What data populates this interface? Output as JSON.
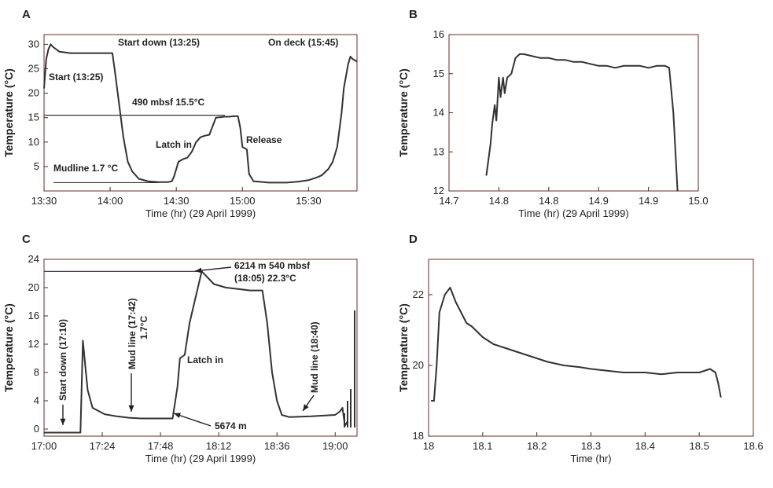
{
  "chart_data": [
    {
      "panel": "A",
      "type": "line",
      "xlabel": "Time (hr) (29 April 1999)",
      "ylabel": "Temperature (°C)",
      "x_ticks": [
        "13:30",
        "14:00",
        "14:30",
        "15:00",
        "15:30"
      ],
      "y_ticks": [
        5,
        10,
        15,
        20,
        25,
        30
      ],
      "xlim": [
        "13:30",
        "15:52"
      ],
      "ylim": [
        0,
        32
      ],
      "series": [
        {
          "x": [
            "13:30",
            "13:31",
            "13:32",
            "13:33",
            "13:34",
            "13:37",
            "13:42",
            "13:50",
            "13:58",
            "14:01",
            "14:02",
            "14:04",
            "14:06",
            "14:08",
            "14:10",
            "14:13",
            "14:17",
            "14:22",
            "14:26",
            "14:28",
            "14:29",
            "14:31",
            "14:33",
            "14:35",
            "14:37",
            "14:39",
            "14:41",
            "14:43",
            "14:45",
            "14:48",
            "14:52",
            "14:54",
            "14:56",
            "14:58",
            "14:59",
            "15:00",
            "15:02",
            "15:03",
            "15:05",
            "15:12",
            "15:20",
            "15:25",
            "15:30",
            "15:34",
            "15:36",
            "15:39",
            "15:41",
            "15:43",
            "15:45",
            "15:46",
            "15:48",
            "15:49",
            "15:50",
            "15:52"
          ],
          "values": [
            21,
            27,
            29,
            30,
            29.5,
            28.5,
            28.2,
            28.2,
            28.2,
            28.2,
            25,
            18,
            11,
            6,
            4,
            2.5,
            2,
            1.8,
            1.8,
            2,
            3,
            6,
            6.5,
            6.8,
            8,
            10,
            11,
            11.3,
            11.5,
            15,
            15.2,
            15.2,
            15.3,
            15.3,
            13,
            9,
            8.5,
            3.5,
            2,
            1.7,
            1.7,
            1.9,
            2.2,
            2.8,
            3.2,
            4.5,
            6,
            9,
            16,
            21,
            26,
            27.5,
            27,
            26.5
          ]
        }
      ],
      "annotations": [
        "Start down (13:25)",
        "On deck (15:45)",
        "Start (13:25)",
        "490 mbsf 15.5°C",
        "Latch in",
        "Release",
        "Mudline 1.7 °C"
      ]
    },
    {
      "panel": "B",
      "type": "line",
      "xlabel": "Time (hr) (29 April 1999)",
      "ylabel": "Temperature (°C)",
      "x_ticks": [
        "14.7",
        "14.8",
        "14.8",
        "14.9",
        "14.9",
        "15.0"
      ],
      "y_ticks": [
        12,
        13,
        14,
        15,
        16
      ],
      "xlim": [
        14.7,
        15.0
      ],
      "ylim": [
        12,
        16
      ],
      "series": [
        {
          "x": [
            14.745,
            14.75,
            14.752,
            14.755,
            14.757,
            14.76,
            14.762,
            14.765,
            14.767,
            14.77,
            14.775,
            14.78,
            14.785,
            14.79,
            14.8,
            14.81,
            14.82,
            14.83,
            14.84,
            14.85,
            14.86,
            14.87,
            14.88,
            14.89,
            14.9,
            14.91,
            14.92,
            14.93,
            14.94,
            14.95,
            14.96,
            14.965,
            14.97,
            14.975
          ],
          "values": [
            12.4,
            13.2,
            13.7,
            14.2,
            13.8,
            14.9,
            14.4,
            14.9,
            14.5,
            14.9,
            15.0,
            15.4,
            15.5,
            15.5,
            15.45,
            15.4,
            15.4,
            15.35,
            15.35,
            15.3,
            15.3,
            15.25,
            15.2,
            15.2,
            15.15,
            15.2,
            15.2,
            15.2,
            15.15,
            15.2,
            15.2,
            15.15,
            14.0,
            12.0
          ]
        }
      ]
    },
    {
      "panel": "C",
      "type": "line",
      "xlabel": "Time (hr) (29 April 1999)",
      "ylabel": "Temperature (°C)",
      "x_ticks": [
        "17:00",
        "17:24",
        "17:48",
        "18:12",
        "18:36",
        "19:00"
      ],
      "y_ticks": [
        0,
        4,
        8,
        12,
        16,
        20,
        24
      ],
      "xlim": [
        "17:00",
        "19:09"
      ],
      "ylim": [
        -1,
        24
      ],
      "series": [
        {
          "x": [
            "17:00",
            "17:15",
            "17:16",
            "17:17",
            "17:18",
            "17:20",
            "17:25",
            "17:30",
            "17:35",
            "17:40",
            "17:50",
            "17:53",
            "17:55",
            "17:56",
            "17:58",
            "18:00",
            "18:05",
            "18:10",
            "18:15",
            "18:20",
            "18:25",
            "18:30",
            "18:32",
            "18:34",
            "18:36",
            "18:38",
            "18:41",
            "18:50",
            "19:00",
            "19:02",
            "19:03",
            "19:04",
            "19:05"
          ],
          "values": [
            -0.5,
            -0.5,
            12.5,
            9,
            5.5,
            3,
            2.1,
            1.8,
            1.6,
            1.5,
            1.5,
            1.5,
            6,
            10,
            10.5,
            15,
            22.3,
            20.5,
            20,
            19.8,
            19.6,
            19.6,
            15,
            8,
            4,
            2,
            1.7,
            1.8,
            2,
            2.5,
            3,
            0.5,
            1
          ]
        }
      ],
      "annotations": [
        "Start down (17:10)",
        "Mud line (17:42) 1.7°C",
        "Latch in",
        "5674 m",
        "6214 m 540 mbsf",
        "(18:05) 22.3°C",
        "Mud line (18:40)"
      ]
    },
    {
      "panel": "D",
      "type": "line",
      "xlabel": "Time (hr)",
      "ylabel": "Temperature (°C)",
      "x_ticks": [
        "18",
        "18.1",
        "18.2",
        "18.3",
        "18.4",
        "18.5",
        "18.6"
      ],
      "y_ticks": [
        18,
        20,
        22
      ],
      "xlim": [
        18,
        18.6
      ],
      "ylim": [
        18,
        23
      ],
      "series": [
        {
          "x": [
            18.005,
            18.01,
            18.015,
            18.02,
            18.03,
            18.04,
            18.05,
            18.06,
            18.07,
            18.08,
            18.1,
            18.12,
            18.14,
            18.16,
            18.18,
            18.2,
            18.22,
            18.25,
            18.28,
            18.3,
            18.33,
            18.36,
            18.4,
            18.43,
            18.46,
            18.5,
            18.52,
            18.53,
            18.535,
            18.54
          ],
          "values": [
            19,
            19,
            20,
            21.5,
            22,
            22.2,
            21.8,
            21.5,
            21.2,
            21.1,
            20.8,
            20.6,
            20.5,
            20.4,
            20.3,
            20.2,
            20.1,
            20.0,
            19.95,
            19.9,
            19.85,
            19.8,
            19.8,
            19.75,
            19.8,
            19.8,
            19.9,
            19.8,
            19.5,
            19.1
          ]
        }
      ]
    }
  ]
}
